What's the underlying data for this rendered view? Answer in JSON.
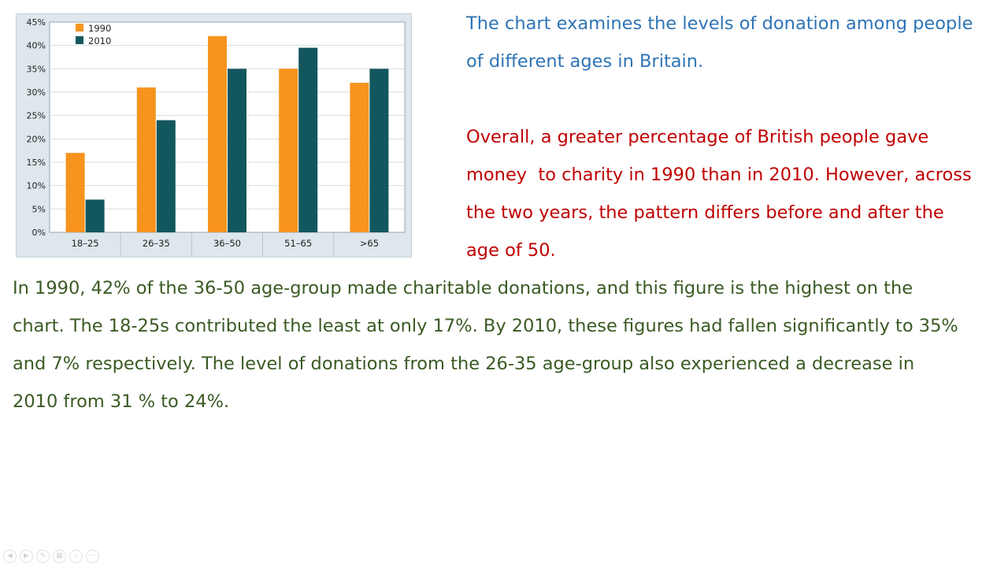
{
  "chart_data": {
    "type": "bar",
    "title": "",
    "xlabel": "",
    "ylabel": "",
    "categories": [
      "18–25",
      "26–35",
      "36–50",
      "51–65",
      ">65"
    ],
    "series": [
      {
        "name": "1990",
        "values": [
          17,
          31,
          42,
          35,
          32
        ],
        "color": "#f7941d"
      },
      {
        "name": "2010",
        "values": [
          7,
          24,
          35,
          39.5,
          35
        ],
        "color": "#13575e"
      }
    ],
    "ylim": [
      0,
      45
    ],
    "yticks": [
      "0%",
      "5%",
      "10%",
      "15%",
      "20%",
      "25%",
      "30%",
      "35%",
      "40%",
      "45%"
    ],
    "grid": true,
    "legend": "top-left"
  },
  "text": {
    "intro": [
      "The chart examines the levels of donation among people",
      "of different ages in Britain."
    ],
    "overview": [
      "Overall, a greater percentage of British people gave",
      "money  to charity in 1990 than in 2010. However, across",
      "the two years, the pattern differs before and after the",
      "age of 50."
    ],
    "paragraph": [
      "In 1990, 42% of the 36-50 age-group made charitable donations, and this figure is the highest on the",
      "chart. The 18-25s contributed the least at only 17%. By 2010, these figures had fallen significantly to 35%",
      "and 7% respectively. The level of donations from the 26-35 age-group also experienced a decrease in",
      "2010 from 31 % to 24%."
    ]
  },
  "controls": [
    {
      "name": "prev-slide-icon",
      "glyph": "◀"
    },
    {
      "name": "next-slide-icon",
      "glyph": "▶"
    },
    {
      "name": "pen-icon",
      "glyph": "✎"
    },
    {
      "name": "slides-icon",
      "glyph": "▦"
    },
    {
      "name": "zoom-icon",
      "glyph": "⌕"
    },
    {
      "name": "more-icon",
      "glyph": "⋯"
    }
  ]
}
